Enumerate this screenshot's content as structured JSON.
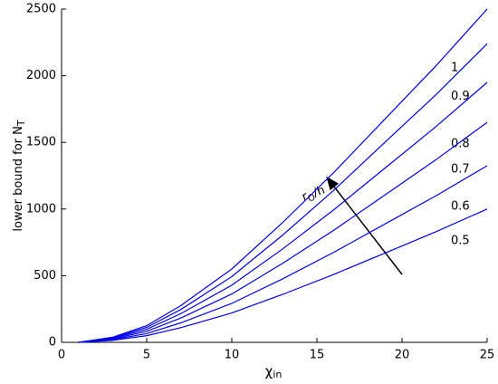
{
  "chart_data": {
    "type": "line",
    "xlabel": {
      "text": "χ",
      "subscript": "in"
    },
    "ylabel": {
      "text": "lower bound for N",
      "subscript": "T"
    },
    "annotation": {
      "text": "r",
      "subscript": "O",
      "suffix": "/h"
    },
    "x": [
      1,
      3,
      5,
      7,
      10,
      13,
      16,
      19,
      22,
      25
    ],
    "series": [
      {
        "name": "1",
        "color": "#0000ee",
        "values": [
          0,
          38,
          125,
          275,
          550,
          900,
          1275,
          1675,
          2075,
          2500
        ]
      },
      {
        "name": "0.9",
        "color": "#0000ee",
        "values": [
          0,
          34,
          112,
          246,
          493,
          806,
          1142,
          1501,
          1859,
          2240
        ]
      },
      {
        "name": "0.8",
        "color": "#0000ee",
        "values": [
          0,
          29,
          98,
          215,
          429,
          702,
          995,
          1307,
          1619,
          1950
        ]
      },
      {
        "name": "0.7",
        "color": "#0000ee",
        "values": [
          0,
          25,
          83,
          182,
          363,
          594,
          842,
          1106,
          1370,
          1650
        ]
      },
      {
        "name": "0.6",
        "color": "#0000ee",
        "values": [
          0,
          20,
          66,
          146,
          292,
          477,
          676,
          888,
          1100,
          1325
        ]
      },
      {
        "name": "0.5",
        "color": "#0000ee",
        "values": [
          0,
          15,
          50,
          110,
          220,
          360,
          510,
          670,
          830,
          1000
        ]
      }
    ],
    "xlim": [
      0,
      25
    ],
    "xticks": [
      0,
      5,
      10,
      15,
      20,
      25
    ],
    "ylim": [
      0,
      2500
    ],
    "yticks": [
      0,
      500,
      1000,
      1500,
      2000,
      2500
    ],
    "grid": false
  }
}
